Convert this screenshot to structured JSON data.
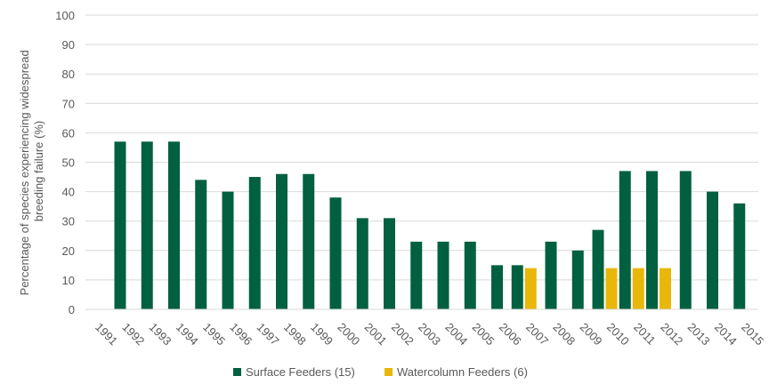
{
  "chart_data": {
    "type": "bar",
    "title": "",
    "xlabel": "",
    "ylabel": "Percentage of species experiencing widespread breeding failure (%)",
    "ylabel_lines": [
      "Percentage of species experiencing widespread",
      "breeding failure (%)"
    ],
    "ylim": [
      0,
      100
    ],
    "yticks": [
      0,
      10,
      20,
      30,
      40,
      50,
      60,
      70,
      80,
      90,
      100
    ],
    "grid": true,
    "legend_position": "bottom",
    "categories": [
      "1991",
      "1992",
      "1993",
      "1994",
      "1995",
      "1996",
      "1997",
      "1998",
      "1999",
      "2000",
      "2001",
      "2002",
      "2003",
      "2004",
      "2005",
      "2006",
      "2007",
      "2008",
      "2009",
      "2010",
      "2011",
      "2012",
      "2013",
      "2014",
      "2015"
    ],
    "series": [
      {
        "name": "Surface Feeders (15)",
        "color": "#00603F",
        "values": [
          57,
          57,
          57,
          44,
          40,
          45,
          46,
          46,
          38,
          31,
          31,
          23,
          23,
          23,
          15,
          15,
          23,
          20,
          27,
          47,
          47,
          47,
          40,
          36,
          null
        ]
      },
      {
        "name": "Watercolumn Feeders (6)",
        "color": "#E8B709",
        "values": [
          null,
          null,
          null,
          null,
          null,
          null,
          null,
          null,
          null,
          null,
          null,
          null,
          null,
          null,
          null,
          14,
          null,
          null,
          14,
          14,
          14,
          null,
          null,
          null,
          null
        ]
      }
    ]
  }
}
